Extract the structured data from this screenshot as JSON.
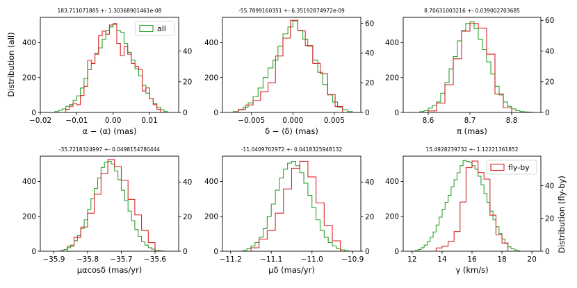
{
  "figure": {
    "left_ylabel": "Distribution (all)",
    "right_ylabel": "Distribution (fly-by)",
    "colors": {
      "all": "#2ca02c",
      "flyby": "#d62728",
      "axis": "#000000"
    }
  },
  "chart_data": [
    {
      "type": "histogram",
      "title": "183.711071885 +- 1.30368901461e-08",
      "xlabel": "α − ⟨α⟩ (mas)",
      "xlim": [
        -0.02,
        0.018
      ],
      "xticks": [
        -0.02,
        -0.01,
        0.0,
        0.01
      ],
      "xtick_labels": [
        "−0.02",
        "−0.01",
        "0.00",
        "0.01"
      ],
      "ylim_left": [
        0,
        545
      ],
      "yticks_left": [
        0,
        200,
        400
      ],
      "ylim_right": [
        0,
        62
      ],
      "yticks_right": [
        0,
        20,
        40
      ],
      "legend": {
        "label": "all",
        "color": "#2ca02c",
        "loc": "upper right"
      },
      "series": [
        {
          "name": "all",
          "color": "#2ca02c",
          "axis": "left",
          "edges": [
            -0.016,
            -0.015,
            -0.014,
            -0.013,
            -0.012,
            -0.011,
            -0.01,
            -0.009,
            -0.008,
            -0.007,
            -0.006,
            -0.005,
            -0.004,
            -0.003,
            -0.002,
            -0.001,
            0.0,
            0.001,
            0.002,
            0.003,
            0.004,
            0.005,
            0.006,
            0.007,
            0.008,
            0.009,
            0.01,
            0.011,
            0.012,
            0.013,
            0.014,
            0.015
          ],
          "counts": [
            5,
            12,
            20,
            35,
            45,
            70,
            95,
            140,
            195,
            245,
            280,
            340,
            370,
            420,
            470,
            490,
            505,
            470,
            460,
            395,
            345,
            300,
            250,
            210,
            155,
            110,
            80,
            50,
            30,
            15,
            5
          ]
        },
        {
          "name": "fly-by",
          "color": "#d62728",
          "axis": "right",
          "edges": [
            -0.013,
            -0.012,
            -0.011,
            -0.01,
            -0.009,
            -0.008,
            -0.007,
            -0.006,
            -0.005,
            -0.004,
            -0.003,
            -0.002,
            -0.001,
            0.0,
            0.001,
            0.002,
            0.003,
            0.004,
            0.005,
            0.006,
            0.007,
            0.008,
            0.009,
            0.01,
            0.011,
            0.012,
            0.013
          ],
          "counts": [
            2,
            4,
            6,
            5,
            11,
            17,
            34,
            32,
            38,
            50,
            53,
            51,
            57,
            58,
            45,
            37,
            43,
            38,
            32,
            30,
            28,
            14,
            16,
            9,
            5,
            2
          ]
        }
      ]
    },
    {
      "type": "histogram",
      "title": "-55.7899160351 +- 6.35192874972e-09",
      "xlabel": "δ − ⟨δ⟩ (mas)",
      "xlim": [
        -0.0085,
        0.0082
      ],
      "xticks": [
        -0.005,
        0.0,
        0.005
      ],
      "xtick_labels": [
        "−0.005",
        "0.000",
        "0.005"
      ],
      "ylim_left": [
        0,
        545
      ],
      "yticks_left": [
        0,
        200,
        400
      ],
      "ylim_right": [
        0,
        64
      ],
      "yticks_right": [
        0,
        20,
        40,
        60
      ],
      "series": [
        {
          "name": "all",
          "color": "#2ca02c",
          "axis": "left",
          "edges": [
            -0.0072,
            -0.0066,
            -0.006,
            -0.0054,
            -0.0048,
            -0.0042,
            -0.0036,
            -0.003,
            -0.0024,
            -0.0018,
            -0.0012,
            -0.0006,
            0.0,
            0.0006,
            0.0012,
            0.0018,
            0.0024,
            0.003,
            0.0036,
            0.0042,
            0.0048,
            0.0054,
            0.006,
            0.0066,
            0.0072
          ],
          "counts": [
            5,
            15,
            30,
            55,
            90,
            140,
            200,
            255,
            300,
            380,
            450,
            490,
            525,
            470,
            420,
            380,
            300,
            230,
            160,
            100,
            60,
            30,
            15,
            5
          ]
        },
        {
          "name": "fly-by",
          "color": "#d62728",
          "axis": "right",
          "edges": [
            -0.0066,
            -0.0057,
            -0.0048,
            -0.0039,
            -0.003,
            -0.0021,
            -0.0012,
            -0.0003,
            0.0006,
            0.0015,
            0.0024,
            0.0033,
            0.0042,
            0.0051,
            0.006
          ],
          "counts": [
            2,
            5,
            8,
            14,
            20,
            38,
            50,
            62,
            55,
            45,
            33,
            26,
            12,
            4
          ]
        }
      ]
    },
    {
      "type": "histogram",
      "title": "8.70631003216 +- 0.039002703685",
      "xlabel": "π (mas)",
      "xlim": [
        8.54,
        8.87
      ],
      "xticks": [
        8.6,
        8.7,
        8.8
      ],
      "xtick_labels": [
        "8.6",
        "8.7",
        "8.8"
      ],
      "ylim_left": [
        0,
        545
      ],
      "yticks_left": [
        0,
        200,
        400
      ],
      "ylim_right": [
        0,
        62
      ],
      "yticks_right": [
        0,
        20,
        40,
        60
      ],
      "series": [
        {
          "name": "all",
          "color": "#2ca02c",
          "axis": "left",
          "edges": [
            8.58,
            8.59,
            8.6,
            8.61,
            8.62,
            8.63,
            8.64,
            8.65,
            8.66,
            8.67,
            8.68,
            8.69,
            8.7,
            8.71,
            8.72,
            8.73,
            8.74,
            8.75,
            8.76,
            8.77,
            8.78,
            8.79,
            8.8,
            8.81,
            8.82,
            8.83,
            8.84,
            8.85
          ],
          "counts": [
            5,
            10,
            25,
            40,
            60,
            110,
            170,
            250,
            320,
            410,
            470,
            510,
            520,
            480,
            420,
            360,
            290,
            220,
            150,
            100,
            60,
            35,
            20,
            10,
            5,
            3,
            2
          ]
        },
        {
          "name": "fly-by",
          "color": "#d62728",
          "axis": "right",
          "edges": [
            8.6,
            8.62,
            8.64,
            8.66,
            8.68,
            8.7,
            8.72,
            8.74,
            8.76,
            8.78,
            8.8
          ],
          "counts": [
            1,
            6,
            18,
            35,
            53,
            58,
            55,
            38,
            12,
            3
          ]
        }
      ]
    },
    {
      "type": "histogram",
      "title": "-35.7218324997 +- 0.0498154780444",
      "xlabel": "μαcosδ (mas/yr)",
      "xlim": [
        -35.94,
        -35.53
      ],
      "xticks": [
        -35.9,
        -35.8,
        -35.7,
        -35.6
      ],
      "xtick_labels": [
        "−35.9",
        "−35.8",
        "−35.7",
        "−35.6"
      ],
      "ylim_left": [
        0,
        545
      ],
      "yticks_left": [
        0,
        200,
        400
      ],
      "ylim_right": [
        0,
        55
      ],
      "yticks_right": [
        0,
        20,
        40
      ],
      "series": [
        {
          "name": "all",
          "color": "#2ca02c",
          "axis": "left",
          "edges": [
            -35.88,
            -35.87,
            -35.86,
            -35.85,
            -35.84,
            -35.83,
            -35.82,
            -35.81,
            -35.8,
            -35.79,
            -35.78,
            -35.77,
            -35.76,
            -35.75,
            -35.74,
            -35.73,
            -35.72,
            -35.71,
            -35.7,
            -35.69,
            -35.68,
            -35.67,
            -35.66,
            -35.65,
            -35.64,
            -35.63,
            -35.62,
            -35.61,
            -35.6,
            -35.59,
            -35.58,
            -35.57
          ],
          "counts": [
            5,
            10,
            20,
            35,
            60,
            90,
            130,
            180,
            240,
            300,
            360,
            420,
            480,
            510,
            515,
            500,
            460,
            410,
            350,
            290,
            230,
            175,
            125,
            85,
            55,
            35,
            20,
            12,
            6,
            3,
            1
          ]
        },
        {
          "name": "fly-by",
          "color": "#d62728",
          "axis": "right",
          "edges": [
            -35.86,
            -35.84,
            -35.82,
            -35.8,
            -35.78,
            -35.76,
            -35.74,
            -35.72,
            -35.7,
            -35.68,
            -35.66,
            -35.64,
            -35.62,
            -35.6
          ],
          "counts": [
            3,
            8,
            14,
            22,
            33,
            45,
            53,
            49,
            41,
            30,
            21,
            12,
            5
          ]
        }
      ]
    },
    {
      "type": "histogram",
      "title": "-11.0409702972 +- 0.0418325948132",
      "xlabel": "μδ (mas/yr)",
      "xlim": [
        -11.22,
        -10.88
      ],
      "xticks": [
        -11.2,
        -11.1,
        -11.0,
        -10.9
      ],
      "xtick_labels": [
        "−11.2",
        "−11.1",
        "−11.0",
        "−10.9"
      ],
      "ylim_left": [
        0,
        545
      ],
      "yticks_left": [
        0,
        200,
        400
      ],
      "ylim_right": [
        0,
        55
      ],
      "yticks_right": [
        0,
        20,
        40
      ],
      "series": [
        {
          "name": "all",
          "color": "#2ca02c",
          "axis": "left",
          "edges": [
            -11.17,
            -11.16,
            -11.15,
            -11.14,
            -11.13,
            -11.12,
            -11.11,
            -11.1,
            -11.09,
            -11.08,
            -11.07,
            -11.06,
            -11.05,
            -11.04,
            -11.03,
            -11.02,
            -11.01,
            -11.0,
            -10.99,
            -10.98,
            -10.97,
            -10.96,
            -10.95,
            -10.94,
            -10.93,
            -10.92,
            -10.91
          ],
          "counts": [
            5,
            15,
            30,
            50,
            80,
            130,
            200,
            270,
            350,
            420,
            470,
            505,
            515,
            490,
            450,
            390,
            320,
            250,
            180,
            120,
            80,
            50,
            30,
            15,
            8,
            3
          ]
        },
        {
          "name": "fly-by",
          "color": "#d62728",
          "axis": "right",
          "edges": [
            -11.15,
            -11.13,
            -11.11,
            -11.09,
            -11.07,
            -11.05,
            -11.03,
            -11.01,
            -10.99,
            -10.97,
            -10.95,
            -10.93
          ],
          "counts": [
            2,
            7,
            12,
            22,
            36,
            48,
            52,
            43,
            28,
            15,
            6
          ]
        }
      ]
    },
    {
      "type": "histogram",
      "title": "15.4928239732 +- 1.12221361852",
      "xlabel": "γ (km/s)",
      "xlim": [
        11.4,
        20.6
      ],
      "xticks": [
        12,
        14,
        16,
        18,
        20
      ],
      "xtick_labels": [
        "12",
        "14",
        "16",
        "18",
        "20"
      ],
      "ylim_left": [
        0,
        545
      ],
      "yticks_left": [
        0,
        200,
        400
      ],
      "ylim_right": [
        0,
        58
      ],
      "yticks_right": [
        0,
        20,
        40
      ],
      "legend": {
        "label": "fly-by",
        "color": "#d62728",
        "loc": "upper right"
      },
      "series": [
        {
          "name": "all",
          "color": "#2ca02c",
          "axis": "left",
          "edges": [
            12.2,
            12.4,
            12.6,
            12.8,
            13.0,
            13.2,
            13.4,
            13.6,
            13.8,
            14.0,
            14.2,
            14.4,
            14.6,
            14.8,
            15.0,
            15.2,
            15.4,
            15.6,
            15.8,
            16.0,
            16.2,
            16.4,
            16.6,
            16.8,
            17.0,
            17.2,
            17.4,
            17.6,
            17.8,
            18.0,
            18.2,
            18.4,
            18.6,
            18.8,
            19.0,
            19.2
          ],
          "counts": [
            5,
            10,
            20,
            35,
            55,
            80,
            110,
            150,
            195,
            240,
            280,
            320,
            370,
            410,
            450,
            490,
            520,
            515,
            510,
            490,
            470,
            430,
            380,
            330,
            280,
            230,
            180,
            140,
            100,
            70,
            45,
            25,
            15,
            8,
            3
          ]
        },
        {
          "name": "fly-by",
          "color": "#d62728",
          "axis": "right",
          "edges": [
            13.6,
            14.0,
            14.4,
            14.8,
            15.2,
            15.6,
            16.0,
            16.4,
            16.8,
            17.2,
            17.6,
            18.0,
            18.4
          ],
          "counts": [
            2,
            3,
            6,
            12,
            30,
            51,
            55,
            48,
            44,
            22,
            10,
            5
          ]
        }
      ]
    }
  ]
}
